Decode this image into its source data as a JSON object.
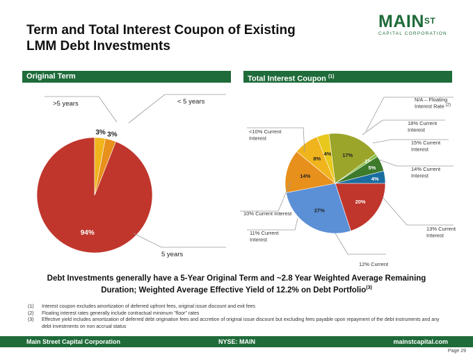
{
  "header": {
    "title_line1": "Term and Total Interest Coupon of Existing",
    "title_line2": "LMM Debt Investments"
  },
  "logo": {
    "main": "MAIN",
    "st": "ST",
    "sub": "CAPITAL CORPORATION"
  },
  "sections": {
    "left": "Original Term",
    "right": "Total Interest Coupon",
    "right_note": "(1)"
  },
  "summary": {
    "line1": "Debt Investments generally have a 5-Year Original Term and ~2.8 Year Weighted Average Remaining",
    "line2": "Duration;   Weighted Average Effective Yield of 12.2% on Debt Portfolio",
    "line2_note": "(3)"
  },
  "footnotes": [
    {
      "num": "(1)",
      "text": "Interest coupon excludes amortization of deferred upfront fees, original issue discount and exit fees"
    },
    {
      "num": "(2)",
      "text": "Floating interest rates generally include contractual minimum \"floor\" rates"
    },
    {
      "num": "(3)",
      "text": "Effective yield includes amortization of deferred debt origination fees and accretion of original issue discount but excluding fees payable upon repayment of the debt instruments and any debt investments on non accrual status"
    }
  ],
  "footer": {
    "left": "Main Street Capital Corporation",
    "center": "NYSE: MAIN",
    "right": "mainstcapital.com",
    "page": "Page  29"
  },
  "chart_data": [
    {
      "type": "pie",
      "title": "Original Term",
      "categories": [
        "5 years",
        ">5 years",
        "< 5 years"
      ],
      "values": [
        94,
        3,
        3
      ],
      "value_labels": [
        "94%",
        "3%",
        "3%"
      ],
      "colors": [
        "#c0362c",
        "#f0b41c",
        "#e8901c"
      ]
    },
    {
      "type": "pie",
      "title": "Total Interest Coupon",
      "categories": [
        "13% Current Interest",
        "12% Current Interest",
        "11% Current Interest",
        "10% Current Interest",
        "<10% Current Interest",
        "N/A – Floating Interest Rate",
        "18% Current Interest",
        "15% Current Interest",
        "14% Current Interest"
      ],
      "category_notes": [
        "",
        "",
        "",
        "",
        "",
        "(2)",
        "",
        "",
        ""
      ],
      "values": [
        20,
        27,
        14,
        8,
        4,
        17,
        1,
        5,
        4
      ],
      "value_labels": [
        "20%",
        "27%",
        "14%",
        "8%",
        "4%",
        "17%",
        "1%",
        "5%",
        "4%"
      ],
      "colors": [
        "#c0362c",
        "#5b8fd6",
        "#e8901c",
        "#f0b41c",
        "#e8c81c",
        "#9aa52a",
        "#86c04a",
        "#3e7a2c",
        "#1a6da0"
      ]
    }
  ]
}
